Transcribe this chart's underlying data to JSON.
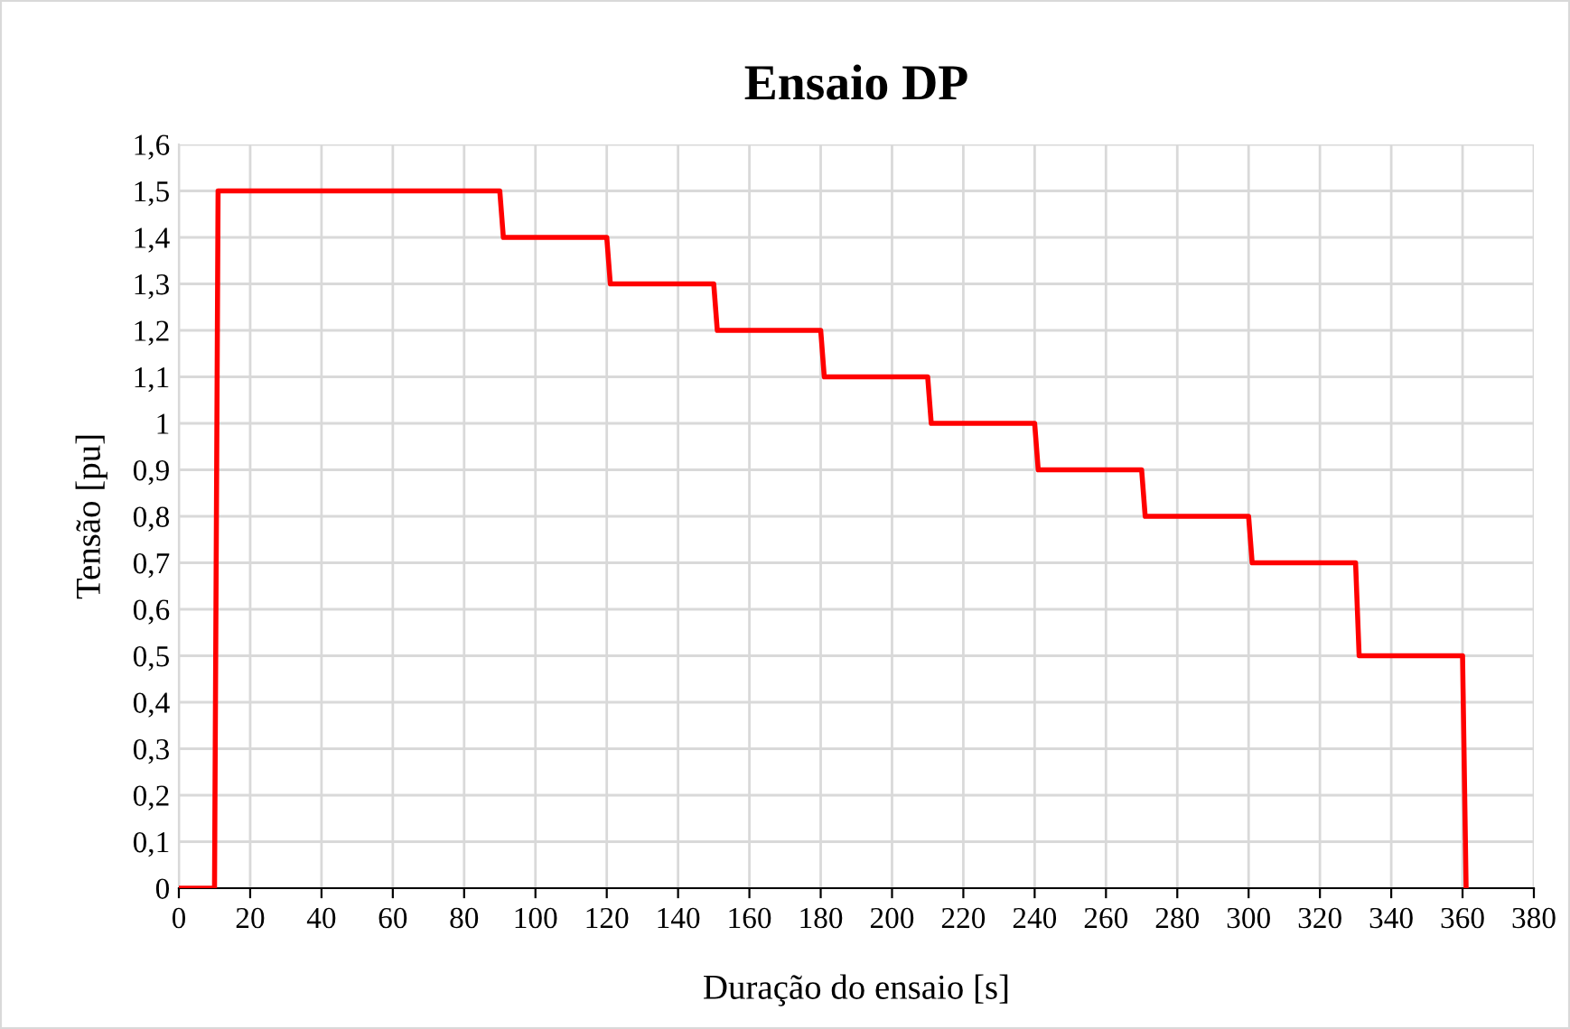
{
  "chart_data": {
    "type": "line",
    "title": "Ensaio DP",
    "xlabel": "Duração do ensaio [s]",
    "ylabel": "Tensão [pu]",
    "series": [
      {
        "color": "#ff0000",
        "x": [
          0,
          10,
          11,
          90,
          91,
          120,
          121,
          150,
          151,
          180,
          181,
          210,
          211,
          240,
          241,
          270,
          271,
          300,
          301,
          330,
          331,
          360,
          361
        ],
        "values": [
          0,
          0,
          1.5,
          1.5,
          1.4,
          1.4,
          1.3,
          1.3,
          1.2,
          1.2,
          1.1,
          1.1,
          1.0,
          1.0,
          0.9,
          0.9,
          0.8,
          0.8,
          0.7,
          0.7,
          0.5,
          0.5,
          0
        ]
      }
    ],
    "xlim": [
      0,
      380
    ],
    "xticks": [
      0,
      20,
      40,
      60,
      80,
      100,
      120,
      140,
      160,
      180,
      200,
      220,
      240,
      260,
      280,
      300,
      320,
      340,
      360,
      380
    ],
    "ylim": [
      0,
      1.6
    ],
    "yticks": [
      0,
      {
        "value": 0.1,
        "label": "0,1"
      },
      {
        "value": 0.2,
        "label": "0,2"
      },
      {
        "value": 0.3,
        "label": "0,3"
      },
      {
        "value": 0.4,
        "label": "0,4"
      },
      {
        "value": 0.5,
        "label": "0,5"
      },
      {
        "value": 0.6,
        "label": "0,6"
      },
      {
        "value": 0.7,
        "label": "0,7"
      },
      {
        "value": 0.8,
        "label": "0,8"
      },
      {
        "value": 0.9,
        "label": "0,9"
      },
      1,
      {
        "value": 1.1,
        "label": "1,1"
      },
      {
        "value": 1.2,
        "label": "1,2"
      },
      {
        "value": 1.3,
        "label": "1,3"
      },
      {
        "value": 1.4,
        "label": "1,4"
      },
      {
        "value": 1.5,
        "label": "1,5"
      },
      {
        "value": 1.6,
        "label": "1,6"
      }
    ],
    "grid": true,
    "legend": false,
    "marker": "none",
    "line_style": "solid"
  }
}
